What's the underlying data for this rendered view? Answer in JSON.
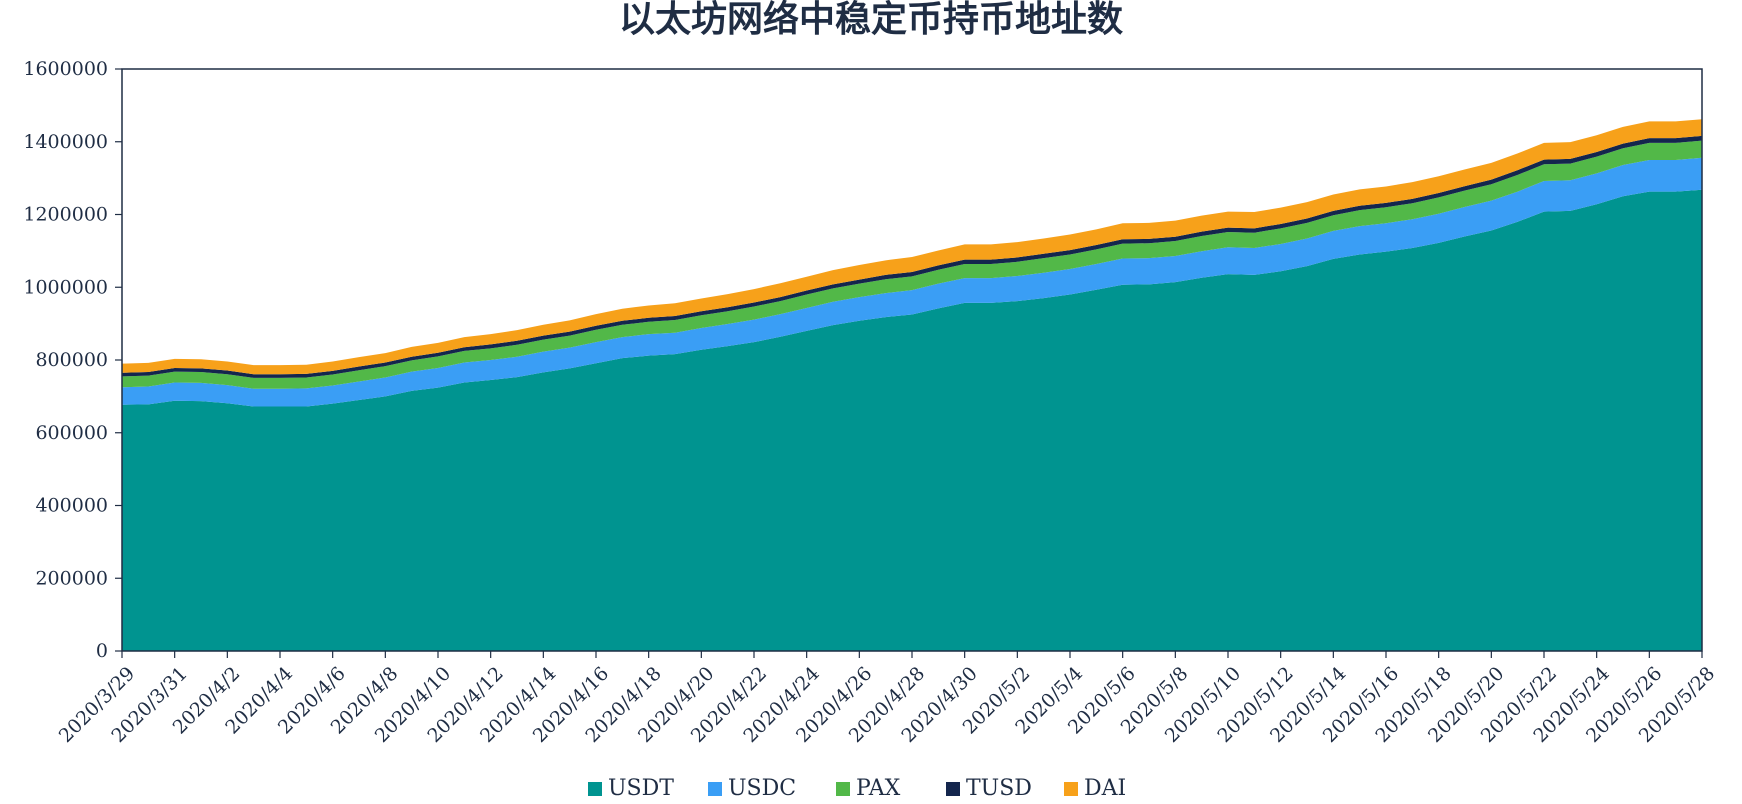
{
  "chart_data": {
    "type": "area",
    "stacked": true,
    "title": "以太坊网络中稳定币持币地址数",
    "xlabel": "",
    "ylabel": "",
    "ylim": [
      0,
      1600000
    ],
    "yticks": [
      0,
      200000,
      400000,
      600000,
      800000,
      1000000,
      1200000,
      1400000,
      1600000
    ],
    "ytick_labels": [
      "0",
      "200000",
      "400000",
      "600000",
      "800000",
      "1000000",
      "1200000",
      "1400000",
      "1600000"
    ],
    "x": [
      "2020/3/29",
      "2020/3/30",
      "2020/3/31",
      "2020/4/1",
      "2020/4/2",
      "2020/4/3",
      "2020/4/4",
      "2020/4/5",
      "2020/4/6",
      "2020/4/7",
      "2020/4/8",
      "2020/4/9",
      "2020/4/10",
      "2020/4/11",
      "2020/4/12",
      "2020/4/13",
      "2020/4/14",
      "2020/4/15",
      "2020/4/16",
      "2020/4/17",
      "2020/4/18",
      "2020/4/19",
      "2020/4/20",
      "2020/4/21",
      "2020/4/22",
      "2020/4/23",
      "2020/4/24",
      "2020/4/25",
      "2020/4/26",
      "2020/4/27",
      "2020/4/28",
      "2020/4/29",
      "2020/4/30",
      "2020/5/1",
      "2020/5/2",
      "2020/5/3",
      "2020/5/4",
      "2020/5/5",
      "2020/5/6",
      "2020/5/7",
      "2020/5/8",
      "2020/5/9",
      "2020/5/10",
      "2020/5/11",
      "2020/5/12",
      "2020/5/13",
      "2020/5/14",
      "2020/5/15",
      "2020/5/16",
      "2020/5/17",
      "2020/5/18",
      "2020/5/19",
      "2020/5/20",
      "2020/5/21",
      "2020/5/22",
      "2020/5/23",
      "2020/5/24",
      "2020/5/25",
      "2020/5/26",
      "2020/5/27",
      "2020/5/28"
    ],
    "xtick_labels": [
      "2020/3/29",
      "2020/3/31",
      "2020/4/2",
      "2020/4/4",
      "2020/4/6",
      "2020/4/8",
      "2020/4/10",
      "2020/4/12",
      "2020/4/14",
      "2020/4/16",
      "2020/4/18",
      "2020/4/20",
      "2020/4/22",
      "2020/4/24",
      "2020/4/26",
      "2020/4/28",
      "2020/4/30",
      "2020/5/2",
      "2020/5/4",
      "2020/5/6",
      "2020/5/8",
      "2020/5/10",
      "2020/5/12",
      "2020/5/14",
      "2020/5/16",
      "2020/5/18",
      "2020/5/20",
      "2020/5/22",
      "2020/5/24",
      "2020/5/26",
      "2020/5/28"
    ],
    "series": [
      {
        "name": "USDT",
        "color": "#009490",
        "values": [
          677000,
          678000,
          688000,
          687000,
          681000,
          672000,
          672000,
          672000,
          680000,
          690000,
          700000,
          715000,
          724000,
          738000,
          745000,
          753000,
          766000,
          777000,
          791000,
          805000,
          812000,
          816000,
          828000,
          838000,
          849000,
          864000,
          880000,
          896000,
          908000,
          918000,
          925000,
          942000,
          957000,
          957000,
          962000,
          970000,
          980000,
          993000,
          1007000,
          1008000,
          1014000,
          1026000,
          1036000,
          1034000,
          1044000,
          1058000,
          1078000,
          1090000,
          1098000,
          1108000,
          1122000,
          1140000,
          1156000,
          1180000,
          1208000,
          1210000,
          1228000,
          1250000,
          1263000,
          1263000,
          1268000
        ]
      },
      {
        "name": "USDC",
        "color": "#3a9ef5",
        "values": [
          48000,
          49000,
          50000,
          50000,
          50000,
          49000,
          49000,
          50000,
          50000,
          51000,
          52000,
          53000,
          54000,
          55000,
          55000,
          56000,
          57000,
          57000,
          58000,
          58000,
          59000,
          59000,
          60000,
          61000,
          62000,
          62000,
          63000,
          64000,
          65000,
          66000,
          67000,
          68000,
          68000,
          68000,
          69000,
          70000,
          70000,
          71000,
          72000,
          72000,
          72000,
          73000,
          74000,
          74000,
          75000,
          76000,
          77000,
          78000,
          78000,
          79000,
          80000,
          81000,
          82000,
          83000,
          84000,
          84000,
          85000,
          86000,
          87000,
          87000,
          88000
        ]
      },
      {
        "name": "PAX",
        "color": "#52b848",
        "values": [
          30000,
          30000,
          30000,
          30000,
          30000,
          30000,
          30000,
          30000,
          30000,
          31000,
          31000,
          31000,
          32000,
          32000,
          32000,
          33000,
          33000,
          33000,
          34000,
          34000,
          34000,
          35000,
          35000,
          35000,
          36000,
          36000,
          37000,
          37000,
          37000,
          38000,
          38000,
          38000,
          39000,
          39000,
          39000,
          40000,
          40000,
          40000,
          41000,
          41000,
          41000,
          42000,
          42000,
          42000,
          43000,
          43000,
          43000,
          44000,
          44000,
          44000,
          45000,
          45000,
          45000,
          46000,
          46000,
          46000,
          46000,
          46000,
          47000,
          47000,
          47000
        ]
      },
      {
        "name": "TUSD",
        "color": "#14264d",
        "values": [
          10000,
          10000,
          10000,
          10000,
          10000,
          10000,
          10000,
          10000,
          10000,
          10000,
          10000,
          10000,
          10000,
          10000,
          11000,
          11000,
          11000,
          11000,
          11000,
          11000,
          11000,
          11000,
          11000,
          11000,
          11000,
          11000,
          11000,
          11000,
          11000,
          12000,
          12000,
          12000,
          12000,
          12000,
          12000,
          12000,
          12000,
          12000,
          12000,
          12000,
          12000,
          12000,
          12000,
          12000,
          12000,
          12000,
          12000,
          12000,
          12000,
          12000,
          12000,
          12000,
          13000,
          13000,
          13000,
          13000,
          13000,
          13000,
          13000,
          13000,
          13000
        ]
      },
      {
        "name": "DAI",
        "color": "#f7a11a",
        "values": [
          25000,
          25000,
          25000,
          25000,
          25000,
          25000,
          25000,
          25000,
          26000,
          26000,
          26000,
          27000,
          27000,
          28000,
          28000,
          29000,
          30000,
          31000,
          32000,
          33000,
          34000,
          35000,
          35000,
          36000,
          37000,
          38000,
          38000,
          39000,
          40000,
          40000,
          41000,
          41000,
          42000,
          42000,
          42000,
          42000,
          43000,
          43000,
          44000,
          44000,
          44000,
          44000,
          44000,
          45000,
          45000,
          45000,
          45000,
          45000,
          45000,
          46000,
          46000,
          46000,
          46000,
          46000,
          46000,
          46000,
          46000,
          46000,
          46000,
          46000,
          46000
        ]
      }
    ],
    "legend": "bottom",
    "grid": false
  }
}
